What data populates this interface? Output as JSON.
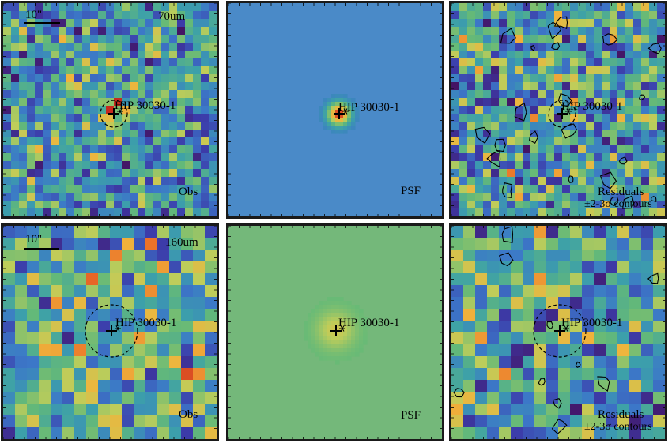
{
  "panels": [
    {
      "id": "p70-obs",
      "mode": "obs",
      "band": "70",
      "title": "70um",
      "scale": "10\"",
      "label": "Obs",
      "target": "HIP 30030-1",
      "circle": "small"
    },
    {
      "id": "p70-psf",
      "mode": "psf",
      "band": "70",
      "title": "",
      "scale": "",
      "label": "PSF",
      "target": "HIP 30030-1",
      "circle": "none"
    },
    {
      "id": "p70-res",
      "mode": "res",
      "band": "70",
      "title": "",
      "scale": "",
      "label": "Residuals",
      "label2": "±2-3σ contours",
      "target": "HIP 30030-1",
      "circle": "small"
    },
    {
      "id": "p160-obs",
      "mode": "obs",
      "band": "160",
      "title": "160um",
      "scale": "10\"",
      "label": "Obs",
      "target": "HIP 30030-1",
      "circle": "large"
    },
    {
      "id": "p160-psf",
      "mode": "psf",
      "band": "160",
      "title": "",
      "scale": "",
      "label": "PSF",
      "target": "HIP 30030-1",
      "circle": "none"
    },
    {
      "id": "p160-res",
      "mode": "res",
      "band": "160",
      "title": "",
      "scale": "",
      "label": "Residuals",
      "label2": "±2-3σ contours",
      "target": "HIP 30030-1",
      "circle": "large"
    }
  ],
  "colors": {
    "psf70_bg": "#4a8ac8",
    "psf160_bg": "#74b87a",
    "frame": "#1a1a1a"
  }
}
